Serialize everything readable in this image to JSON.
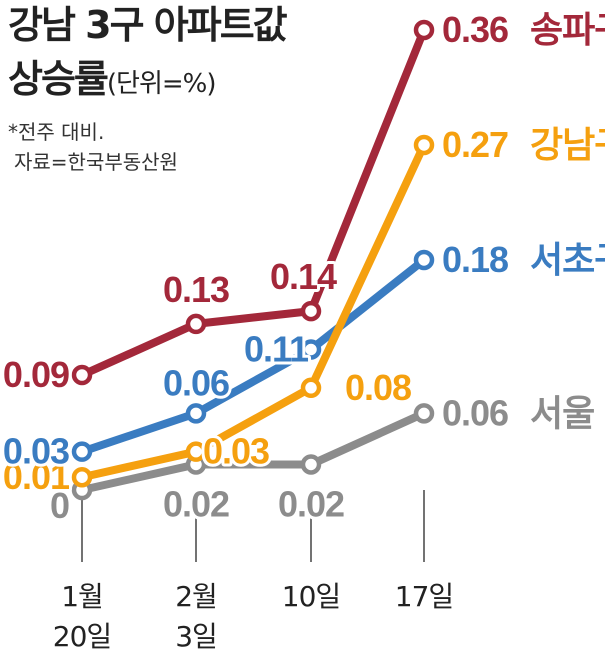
{
  "header": {
    "title_line1": "강남 3구 아파트값",
    "title_line2": "상승률",
    "unit": "(단위=%)",
    "note_line1": "*전주 대비.",
    "note_line2": "자료=한국부동산원"
  },
  "chart_data": {
    "type": "line",
    "title": "강남 3구 아파트값 상승률",
    "unit": "단위=%",
    "categories": [
      "1월 20일",
      "2월 3일",
      "10일",
      "17일"
    ],
    "category_lines": [
      [
        "1월",
        "20일"
      ],
      [
        "2월",
        "3일"
      ],
      [
        "10일"
      ],
      [
        "17일"
      ]
    ],
    "series": [
      {
        "name": "송파구",
        "color": "#a3283a",
        "values": [
          0.09,
          0.13,
          0.14,
          0.36
        ],
        "labels": [
          "0.09",
          "0.13",
          "0.14",
          "0.36"
        ]
      },
      {
        "name": "강남구",
        "color": "#f5a00f",
        "values": [
          0.01,
          0.03,
          0.08,
          0.27
        ],
        "labels": [
          "0.01",
          "0.03",
          "0.08",
          "0.27"
        ]
      },
      {
        "name": "서초구",
        "color": "#3a7cc1",
        "values": [
          0.03,
          0.06,
          0.11,
          0.18
        ],
        "labels": [
          "0.03",
          "0.06",
          "0.11",
          "0.18"
        ]
      },
      {
        "name": "서울",
        "color": "#8c8c8c",
        "values": [
          0,
          0.02,
          0.02,
          0.06
        ],
        "labels": [
          "0",
          "0.02",
          "0.02",
          "0.06"
        ]
      }
    ],
    "grid": false,
    "legend": "end-of-line labels"
  }
}
